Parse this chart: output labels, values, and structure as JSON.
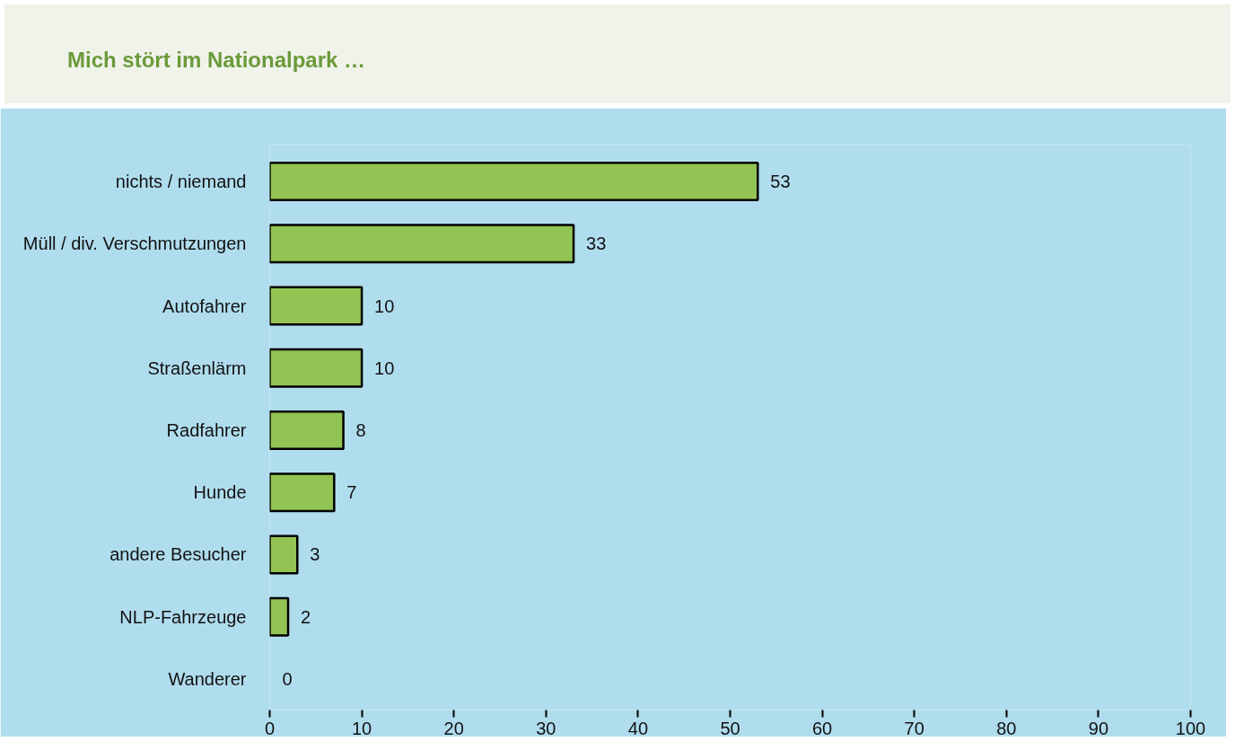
{
  "chart_data": {
    "type": "bar",
    "orientation": "horizontal",
    "title": "Mich stört im Nationalpark …",
    "categories": [
      "nichts / niemand",
      "Müll / div. Verschmutzungen",
      "Autofahrer",
      "Straßenlärm",
      "Radfahrer",
      "Hunde",
      "andere Besucher",
      "NLP-Fahrzeuge",
      "Wanderer"
    ],
    "values": [
      53,
      33,
      10,
      10,
      8,
      7,
      3,
      2,
      0
    ],
    "color": "#92c353",
    "xlim": [
      0,
      100
    ],
    "xticks": [
      0,
      10,
      20,
      30,
      40,
      50,
      60,
      70,
      80,
      90,
      100
    ],
    "data_labels": true,
    "grid": false
  }
}
